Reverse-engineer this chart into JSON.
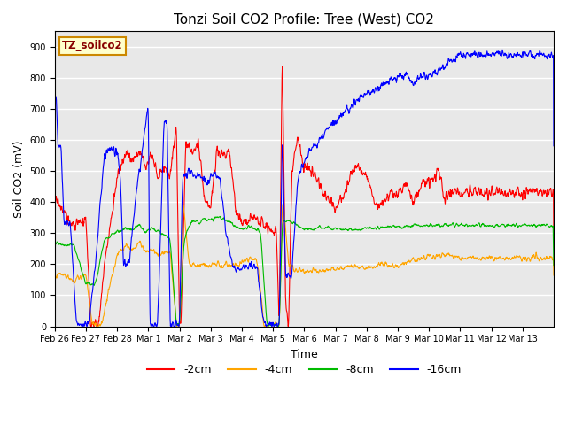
{
  "title": "Tonzi Soil CO2 Profile: Tree (West) CO2",
  "ylabel": "Soil CO2 (mV)",
  "xlabel": "Time",
  "legend_label": "TZ_soilco2",
  "series_labels": [
    "-2cm",
    "-4cm",
    "-8cm",
    "-16cm"
  ],
  "series_colors": [
    "#ff0000",
    "#ffa500",
    "#00bb00",
    "#0000ff"
  ],
  "ylim": [
    0,
    950
  ],
  "yticks": [
    0,
    100,
    200,
    300,
    400,
    500,
    600,
    700,
    800,
    900
  ],
  "xtick_labels": [
    "Feb 26",
    "Feb 27",
    "Feb 28",
    "Mar 1",
    "Mar 2",
    "Mar 3",
    "Mar 4",
    "Mar 5",
    "Mar 6",
    "Mar 7",
    "Mar 8",
    "Mar 9",
    "Mar 10",
    "Mar 11",
    "Mar 12",
    "Mar 13"
  ],
  "plot_bg_color": "#e8e8e8",
  "legend_box_color": "#ffffcc",
  "legend_box_edge": "#cc8800"
}
